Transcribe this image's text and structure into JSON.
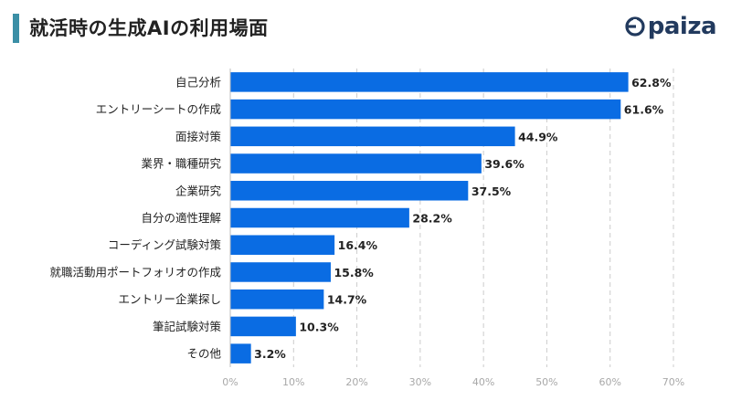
{
  "header": {
    "title": "就活時の生成AIの利用場面",
    "logo_text": "paiza"
  },
  "colors": {
    "bar": "#0a6ce3",
    "accent": "#3b8fa6",
    "logo": "#223a5e",
    "grid": "#cccccc"
  },
  "chart_data": {
    "type": "bar",
    "orientation": "horizontal",
    "categories": [
      "自己分析",
      "エントリーシートの作成",
      "面接対策",
      "業界・職種研究",
      "企業研究",
      "自分の適性理解",
      "コーディング試験対策",
      "就職活動用ポートフォリオの作成",
      "エントリー企業探し",
      "筆記試験対策",
      "その他"
    ],
    "values": [
      62.8,
      61.6,
      44.9,
      39.6,
      37.5,
      28.2,
      16.4,
      15.8,
      14.7,
      10.3,
      3.2
    ],
    "value_labels": [
      "62.8%",
      "61.6%",
      "44.9%",
      "39.6%",
      "37.5%",
      "28.2%",
      "16.4%",
      "15.8%",
      "14.7%",
      "10.3%",
      "3.2%"
    ],
    "xlim": [
      0,
      70
    ],
    "x_ticks": [
      0,
      10,
      20,
      30,
      40,
      50,
      60,
      70
    ],
    "x_tick_labels": [
      "0%",
      "10%",
      "20%",
      "30%",
      "40%",
      "50%",
      "60%",
      "70%"
    ],
    "grid": "vertical dashed"
  }
}
